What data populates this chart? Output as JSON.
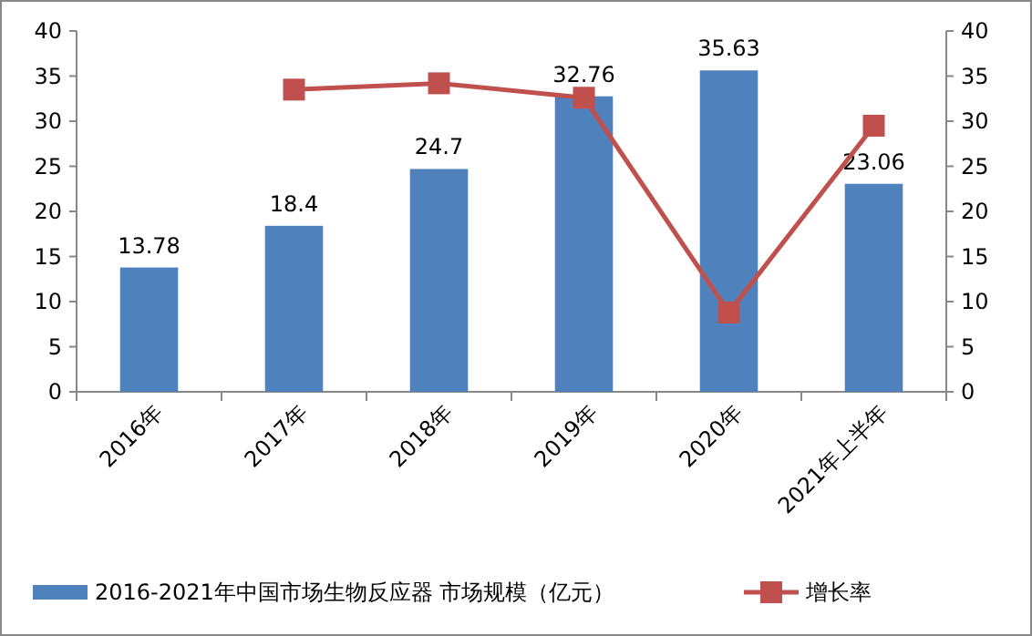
{
  "chart_data": {
    "type": "bar",
    "categories": [
      "2016年",
      "2017年",
      "2018年",
      "2019年",
      "2020年",
      "2021年上半年"
    ],
    "series": [
      {
        "name": "2016-2021年中国市场生物反应器 市场规模（亿元）",
        "color": "#4f81bd",
        "values": [
          13.78,
          18.4,
          24.7,
          32.76,
          35.63,
          23.06
        ],
        "data_labels": true
      },
      {
        "name": "增长率",
        "type": "line",
        "axis": "y2",
        "color": "#c0504d",
        "marker": "square",
        "values": [
          null,
          33.5,
          34.2,
          32.6,
          8.8,
          29.5
        ]
      }
    ],
    "ylim": [
      0,
      40
    ],
    "yticks": [
      0,
      5,
      10,
      15,
      20,
      25,
      30,
      35,
      40
    ],
    "y2lim": [
      0,
      40
    ],
    "y2ticks": [
      0,
      5,
      10,
      15,
      20,
      25,
      30,
      35,
      40
    ],
    "grid": false,
    "legend": "bottom"
  }
}
